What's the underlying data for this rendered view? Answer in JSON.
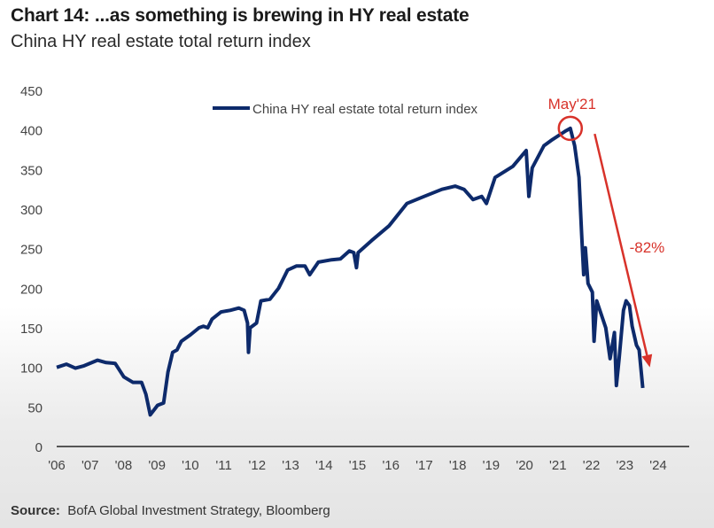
{
  "title": "Chart 14: ...as something is brewing in HY real estate",
  "subtitle": "China HY real estate total return index",
  "source_label": "Source:",
  "source_text": "BofA Global Investment Strategy, Bloomberg",
  "colors": {
    "series": "#0d2a6b",
    "annotation": "#d8322a",
    "axis": "#555555"
  },
  "chart_data": {
    "type": "line",
    "title": "China HY real estate total return index",
    "xlabel": "",
    "ylabel": "",
    "xlim": [
      2006,
      2024
    ],
    "ylim": [
      0,
      450
    ],
    "grid": false,
    "legend_position": "top-center",
    "yticks": [
      "0",
      "50",
      "100",
      "150",
      "200",
      "250",
      "300",
      "350",
      "400",
      "450"
    ],
    "xticks": [
      "'06",
      "'07",
      "'08",
      "'09",
      "'10",
      "'11",
      "'12",
      "'13",
      "'14",
      "'15",
      "'16",
      "'17",
      "'18",
      "'19",
      "'20",
      "'21",
      "'22",
      "'23",
      "'24"
    ],
    "series": [
      {
        "name": "China HY real estate total return index",
        "x": [
          2006.0,
          2006.29,
          2006.56,
          2006.82,
          2007.22,
          2007.48,
          2007.75,
          2008.01,
          2008.28,
          2008.54,
          2008.67,
          2008.8,
          2009.02,
          2009.2,
          2009.33,
          2009.47,
          2009.6,
          2009.73,
          2010.0,
          2010.26,
          2010.39,
          2010.52,
          2010.65,
          2010.92,
          2011.19,
          2011.45,
          2011.61,
          2011.71,
          2011.74,
          2011.79,
          2011.98,
          2012.11,
          2012.38,
          2012.64,
          2012.91,
          2013.17,
          2013.43,
          2013.57,
          2013.83,
          2014.23,
          2014.49,
          2014.76,
          2014.89,
          2014.97,
          2015.02,
          2015.42,
          2015.95,
          2016.48,
          2017.0,
          2017.53,
          2017.93,
          2018.19,
          2018.46,
          2018.72,
          2018.86,
          2019.12,
          2019.65,
          2020.05,
          2020.13,
          2020.23,
          2020.58,
          2020.84,
          2021.24,
          2021.37,
          2021.5,
          2021.63,
          2021.71,
          2021.77,
          2021.82,
          2021.9,
          2022.03,
          2022.08,
          2022.16,
          2022.43,
          2022.56,
          2022.69,
          2022.75,
          2022.83,
          2022.96,
          2023.04,
          2023.14,
          2023.22,
          2023.35,
          2023.43,
          2023.54
        ],
        "y": [
          100,
          104,
          99,
          102,
          109,
          106,
          105,
          88,
          81,
          81,
          66,
          40,
          52,
          55,
          94,
          119,
          122,
          133,
          141,
          150,
          152,
          150,
          161,
          170,
          172,
          175,
          172,
          156,
          119,
          150,
          156,
          184,
          186,
          200,
          223,
          228,
          228,
          217,
          233,
          236,
          237,
          247,
          245,
          226,
          245,
          260,
          279,
          307,
          316,
          325,
          329,
          325,
          312,
          316,
          307,
          340,
          354,
          374,
          316,
          352,
          380,
          388,
          399,
          402,
          380,
          340,
          268,
          217,
          251,
          206,
          195,
          133,
          184,
          150,
          111,
          144,
          77,
          111,
          172,
          184,
          178,
          152,
          128,
          122,
          74
        ]
      }
    ],
    "annotations": [
      {
        "text": "May'21",
        "x": 2021.37,
        "y": 402,
        "type": "circle-marker"
      },
      {
        "text": "-82%",
        "type": "arrow",
        "from": [
          2022.1,
          395
        ],
        "to": [
          2023.75,
          100
        ]
      }
    ]
  }
}
